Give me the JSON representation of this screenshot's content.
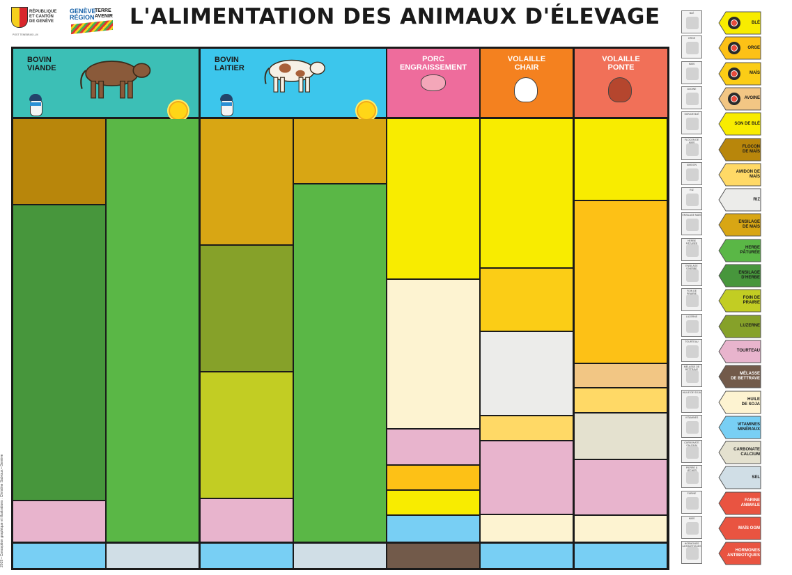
{
  "title": "L'ALIMENTATION DES ANIMAUX D'ÉLEVAGE",
  "logos": {
    "canton": "RÉPUBLIQUE ET CANTON DE GENÈVE",
    "canton_small": "POST TENEBRAS LUX",
    "region_left": "GENÈVE RÉGION",
    "region_right": "TERRE AVENIR"
  },
  "credit": "2019 • Conception graphique et illustrations : Christine Sabroux • Genève",
  "colors": {
    "ble": "#f8ec00",
    "orge": "#fdc116",
    "mais": "#fbcd16",
    "avoine": "#f2c684",
    "son_de_ble": "#f8ec00",
    "flocon_de_mais": "#b8860b",
    "amidon_de_mais": "#ffd966",
    "riz": "#ececea",
    "ensilage_de_mais": "#d8a614",
    "herbe_paturee": "#5ab746",
    "ensilage_herbe": "#47963c",
    "foin_de_prairie": "#c2cd23",
    "luzerne": "#86a129",
    "tourteau": "#e8b4cd",
    "melasse": "#725a4a",
    "huile_de_soja": "#fdf3d1",
    "vitamines": "#78cff4",
    "carbonate": "#e4e1cf",
    "sel": "#d0dee6",
    "farine_animale": "#e95441",
    "mais_ogm": "#e95441",
    "hormones": "#e95441",
    "header_bovin": "#3cbfb6",
    "header_laitier": "#3cc6ec",
    "header_porc": "#ee6c9c",
    "header_volaille_chair": "#f4811f",
    "header_volaille_ponte": "#f17058"
  },
  "headers": [
    {
      "label": "BOVIN\nVIANDE"
    },
    {
      "label": "BOVIN\nLAITIER"
    },
    {
      "label": "PORC\nENGRAISSEMENT"
    },
    {
      "label": "VOLAILLE\nCHAIR"
    },
    {
      "label": "VOLAILLE\nPONTE"
    }
  ],
  "legend": [
    {
      "label": "BLÉ",
      "color": "ble",
      "badge": true,
      "thumb": "BLÉ"
    },
    {
      "label": "ORGE",
      "color": "orge",
      "badge": true,
      "thumb": "ORGE"
    },
    {
      "label": "MAÏS",
      "color": "mais",
      "badge": true,
      "thumb": "MAÏS"
    },
    {
      "label": "AVOINE",
      "color": "avoine",
      "badge": true,
      "thumb": "AVOINE"
    },
    {
      "label": "SON DE BLÉ",
      "color": "son_de_ble",
      "badge": false,
      "thumb": "SON DE BLÉ"
    },
    {
      "label": "FLOCON\nDE MAÏS",
      "color": "flocon_de_mais",
      "badge": false,
      "thumb": "FLOCON DE MAÏS"
    },
    {
      "label": "AMIDON DE\nMAÏS",
      "color": "amidon_de_mais",
      "badge": false,
      "thumb": "AMIDON"
    },
    {
      "label": "RIZ",
      "color": "riz",
      "badge": false,
      "thumb": "RIZ"
    },
    {
      "label": "ENSILAGE\nDE MAÏS",
      "color": "ensilage_de_mais",
      "badge": false,
      "thumb": "ENSILAGE MAÏS"
    },
    {
      "label": "HERBE\nPÂTURÉE",
      "color": "herbe_paturee",
      "badge": false,
      "thumb": "HERBE PÂTURÉE"
    },
    {
      "label": "ENSILAGE\nD'HERBE",
      "color": "ensilage_herbe",
      "badge": false,
      "thumb": "ENSILAGE D'HERBE"
    },
    {
      "label": "FOIN DE\nPRAIRIE",
      "color": "foin_de_prairie",
      "badge": false,
      "thumb": "FOIN DE PRAIRIE"
    },
    {
      "label": "LUZERNE",
      "color": "luzerne",
      "badge": false,
      "thumb": "LUZERNE"
    },
    {
      "label": "TOURTEAU",
      "color": "tourteau",
      "badge": false,
      "thumb": "TOURTEAU"
    },
    {
      "label": "MÉLASSE\nDE BETTRAVE",
      "color": "melasse",
      "badge": false,
      "light": true,
      "thumb": "MÉLASSE DE BETTRAVE"
    },
    {
      "label": "HUILE\nDE SOJA",
      "color": "huile_de_soja",
      "badge": false,
      "thumb": "HUILE DE SOJA"
    },
    {
      "label": "VITAMINES\nMINÉRAUX",
      "color": "vitamines",
      "badge": false,
      "thumb": "VITAMINES"
    },
    {
      "label": "CARBONATE\nCALCIUM",
      "color": "carbonate",
      "badge": false,
      "thumb": "CARBONATE CALCIUM"
    },
    {
      "label": "SEL",
      "color": "sel",
      "badge": false,
      "thumb": "PIERRE À LÉCHER"
    },
    {
      "label": "FARINE\nANIMALE",
      "color": "farine_animale",
      "badge": false,
      "light": true,
      "thumb": "FARINE"
    },
    {
      "label": "MAÏS OGM",
      "color": "mais_ogm",
      "badge": false,
      "light": true,
      "thumb": "MAÏS"
    },
    {
      "label": "HORMONES\nANTIBIOTIQUES",
      "color": "hormones",
      "badge": false,
      "light": true,
      "thumb": "HORMONES ANTIBIOTIQUES"
    }
  ],
  "columns": [
    {
      "name": "bovin-viande-hiver",
      "segments": [
        {
          "feed": "flocon_de_mais",
          "share": 0.205
        },
        {
          "feed": "ensilage_herbe",
          "share": 0.7
        },
        {
          "feed": "tourteau",
          "share": 0.095
        }
      ],
      "base": "vitamines"
    },
    {
      "name": "bovin-viande-ete",
      "segments": [
        {
          "feed": "herbe_paturee",
          "share": 1.0
        }
      ],
      "base": "sel"
    },
    {
      "name": "bovin-laitier-hiver",
      "segments": [
        {
          "feed": "ensilage_de_mais",
          "share": 0.3
        },
        {
          "feed": "luzerne",
          "share": 0.3
        },
        {
          "feed": "foin_de_prairie",
          "share": 0.3
        },
        {
          "feed": "tourteau",
          "share": 0.1
        }
      ],
      "base": "vitamines"
    },
    {
      "name": "bovin-laitier-ete",
      "segments": [
        {
          "feed": "ensilage_de_mais",
          "share": 0.155
        },
        {
          "feed": "herbe_paturee",
          "share": 0.845
        }
      ],
      "base": "sel"
    },
    {
      "name": "porc-engraissement",
      "segments": [
        {
          "feed": "ble",
          "share": 0.38
        },
        {
          "feed": "huile_de_soja",
          "share": 0.355
        },
        {
          "feed": "tourteau",
          "share": 0.085
        },
        {
          "feed": "orge",
          "share": 0.06
        },
        {
          "feed": "son_de_ble",
          "share": 0.06
        },
        {
          "feed": "vitamines",
          "share": 0.06
        }
      ],
      "base": "melasse"
    },
    {
      "name": "volaille-chair",
      "segments": [
        {
          "feed": "ble",
          "share": 0.355
        },
        {
          "feed": "mais",
          "share": 0.15
        },
        {
          "feed": "riz",
          "share": 0.2
        },
        {
          "feed": "amidon_de_mais",
          "share": 0.06
        },
        {
          "feed": "tourteau",
          "share": 0.175
        },
        {
          "feed": "huile_de_soja",
          "share": 0.06
        }
      ],
      "base": "vitamines"
    },
    {
      "name": "volaille-ponte",
      "segments": [
        {
          "feed": "ble",
          "share": 0.195
        },
        {
          "feed": "orge",
          "share": 0.385
        },
        {
          "feed": "avoine",
          "share": 0.058
        },
        {
          "feed": "amidon_de_mais",
          "share": 0.06
        },
        {
          "feed": "carbonate",
          "share": 0.11
        },
        {
          "feed": "tourteau",
          "share": 0.132
        },
        {
          "feed": "huile_de_soja",
          "share": 0.06
        }
      ],
      "base": "vitamines"
    }
  ]
}
